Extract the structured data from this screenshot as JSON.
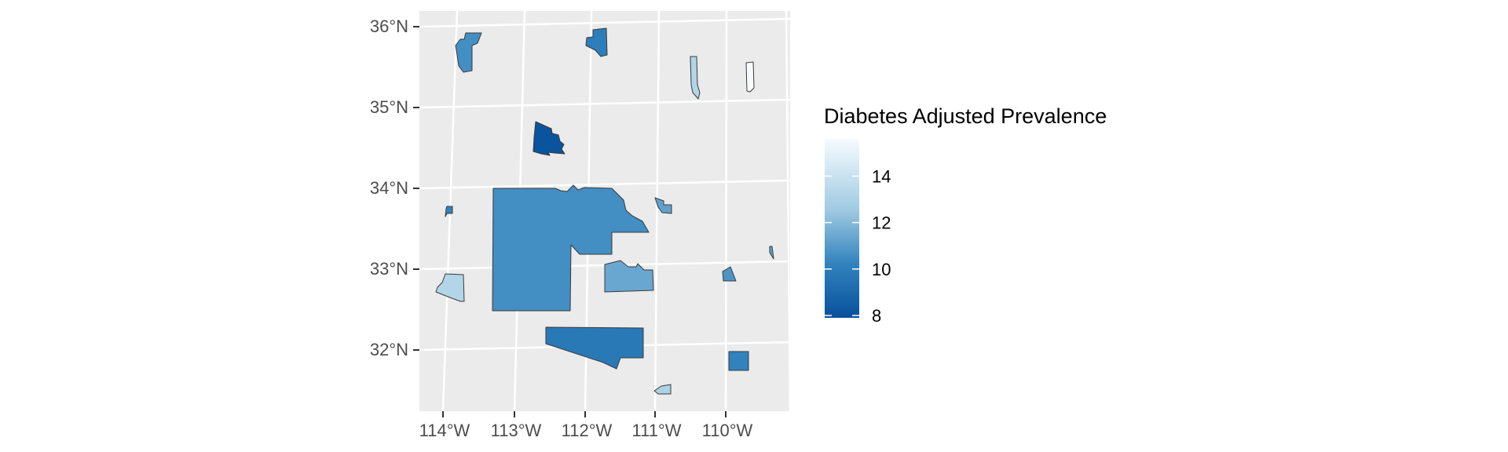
{
  "map": {
    "lat_labels": [
      "36°N",
      "35°N",
      "34°N",
      "33°N",
      "32°N"
    ],
    "lon_labels": [
      "114°W",
      "113°W",
      "112°W",
      "111°W",
      "110°W"
    ],
    "panel_background": "#ebebeb",
    "grid_color": "#ffffff",
    "regions": [
      {
        "id": "r1",
        "value": 10.6
      },
      {
        "id": "r2",
        "value": 10.0
      },
      {
        "id": "r3",
        "value": 13.2
      },
      {
        "id": "r4",
        "value": 15.6
      },
      {
        "id": "r5",
        "value": 8.0
      },
      {
        "id": "r6",
        "value": 10.2
      },
      {
        "id": "r7",
        "value": 10.6
      },
      {
        "id": "r8",
        "value": 11.2
      },
      {
        "id": "r9",
        "value": 13.2
      },
      {
        "id": "r10",
        "value": 11.4
      },
      {
        "id": "r11",
        "value": 10.8
      },
      {
        "id": "r12",
        "value": 11.2
      },
      {
        "id": "r13",
        "value": 9.8
      },
      {
        "id": "r14",
        "value": 10.2
      },
      {
        "id": "r15",
        "value": 13.0
      }
    ]
  },
  "legend": {
    "title": "Diabetes Adjusted Prevalence",
    "breaks": [
      "14",
      "12",
      "10",
      "8"
    ],
    "break_values": [
      14,
      12,
      10,
      8
    ],
    "range": [
      7.9,
      15.6
    ],
    "color_low": "#08519c",
    "color_high": "#f7fbff"
  }
}
